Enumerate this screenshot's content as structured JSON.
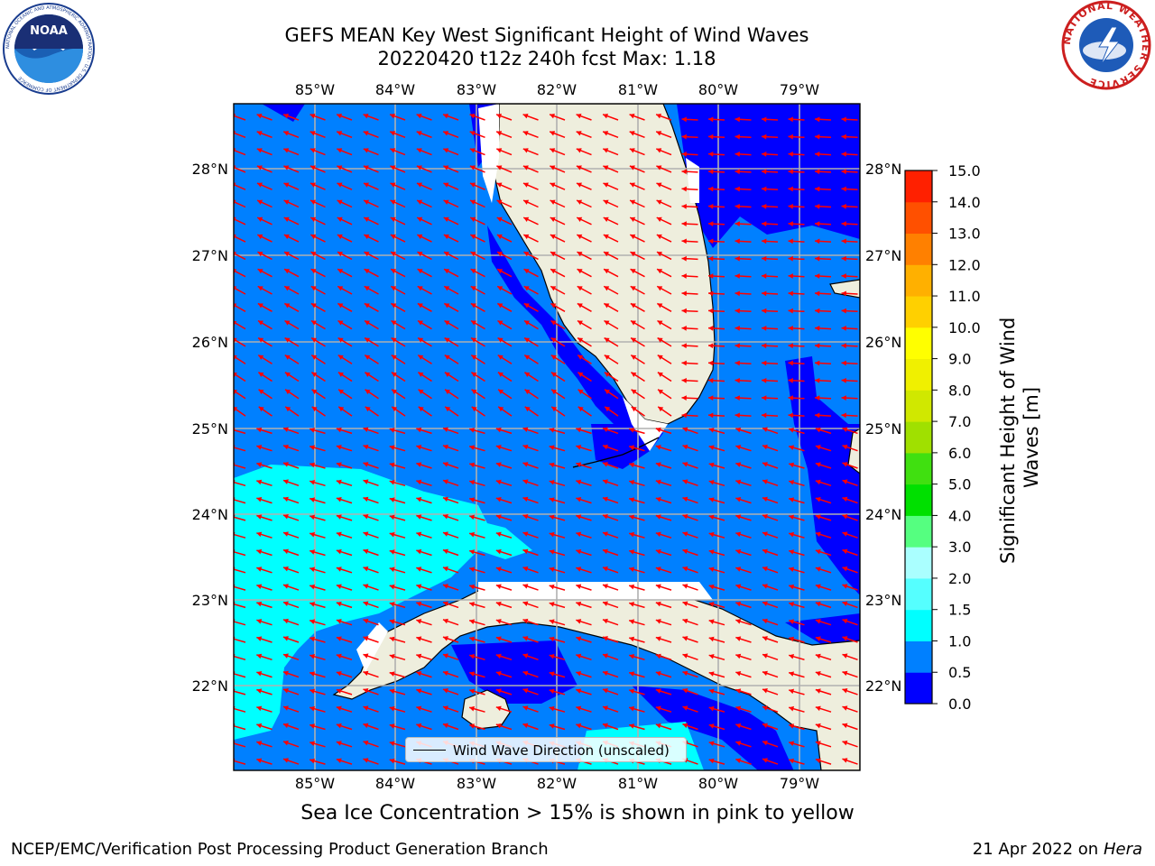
{
  "header": {
    "title_line1": "GEFS MEAN Key West Significant Height of Wind Waves",
    "title_line2": "20220420 t12z 240h fcst   Max: 1.18"
  },
  "logos": {
    "noaa_text": "NOAA",
    "noaa_ring_text": "NATIONAL OCEANIC AND ATMOSPHERIC ADMINISTRATION · U.S. DEPARTMENT OF COMMERCE",
    "nws_ring_text": "NATIONAL WEATHER SERVICE"
  },
  "map": {
    "lon_labels": [
      "85°W",
      "84°W",
      "83°W",
      "82°W",
      "81°W",
      "80°W",
      "79°W"
    ],
    "lat_labels": [
      "28°N",
      "27°N",
      "26°N",
      "25°N",
      "24°N",
      "23°N",
      "22°N"
    ],
    "colors": {
      "land": "#eeeedd",
      "coast": "#000000",
      "grid": "#b0b0b0",
      "arrow": "#ff0000",
      "level_0_0_5": "#0000ff",
      "level_0_5_1_0": "#0080ff",
      "level_1_0_1_5": "#00ffff"
    },
    "legend": {
      "label": "Wind Wave Direction (unscaled)"
    }
  },
  "colorbar": {
    "label_line1": "Significant Height of Wind",
    "label_line2": "Waves [m]",
    "ticks": [
      "0.0",
      "0.5",
      "1.0",
      "1.5",
      "2.0",
      "3.0",
      "4.0",
      "5.0",
      "6.0",
      "7.0",
      "8.0",
      "9.0",
      "10.0",
      "11.0",
      "12.0",
      "13.0",
      "14.0",
      "15.0"
    ],
    "colors": [
      "#0000ff",
      "#0080ff",
      "#00ffff",
      "#55ffff",
      "#aaffff",
      "#55ff80",
      "#00e000",
      "#40e010",
      "#a0e000",
      "#d0e800",
      "#f0f000",
      "#ffff00",
      "#ffd000",
      "#ffb000",
      "#ff8000",
      "#ff5000",
      "#ff2000"
    ]
  },
  "notes": {
    "ice": "Sea Ice Concentration > 15% is shown in pink to yellow",
    "footer_left": "NCEP/EMC/Verification Post Processing Product Generation Branch",
    "footer_date": "21 Apr 2022 on ",
    "footer_host": "Hera"
  }
}
